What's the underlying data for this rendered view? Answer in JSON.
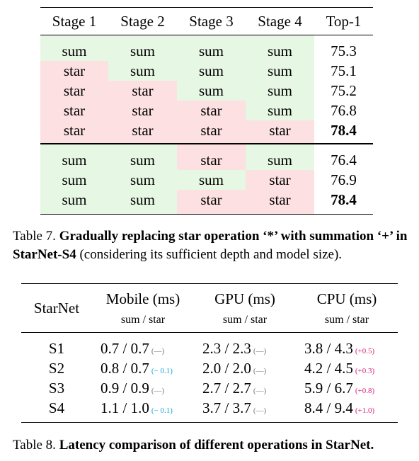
{
  "table7": {
    "headers": [
      "Stage 1",
      "Stage 2",
      "Stage 3",
      "Stage 4",
      "Top-1"
    ],
    "groups": [
      [
        {
          "stages": [
            "sum",
            "sum",
            "sum",
            "sum"
          ],
          "top1": "75.3",
          "bold": false
        },
        {
          "stages": [
            "star",
            "sum",
            "sum",
            "sum"
          ],
          "top1": "75.1",
          "bold": false
        },
        {
          "stages": [
            "star",
            "star",
            "sum",
            "sum"
          ],
          "top1": "75.2",
          "bold": false
        },
        {
          "stages": [
            "star",
            "star",
            "star",
            "sum"
          ],
          "top1": "76.8",
          "bold": false
        },
        {
          "stages": [
            "star",
            "star",
            "star",
            "star"
          ],
          "top1": "78.4",
          "bold": true
        }
      ],
      [
        {
          "stages": [
            "sum",
            "sum",
            "star",
            "sum"
          ],
          "top1": "76.4",
          "bold": false
        },
        {
          "stages": [
            "sum",
            "sum",
            "sum",
            "star"
          ],
          "top1": "76.9",
          "bold": false
        },
        {
          "stages": [
            "sum",
            "sum",
            "star",
            "star"
          ],
          "top1": "78.4",
          "bold": true
        }
      ]
    ],
    "colors": {
      "sum": "#e6f7e4",
      "star": "#fde0e2"
    }
  },
  "caption7": {
    "label": "Table 7.",
    "bold": "Gradually replacing star operation ‘*’ with summation ‘+’ in StarNet-S4",
    "rest": "(considering its sufficient depth and model size)."
  },
  "table8": {
    "corner": "StarNet",
    "columns": [
      "Mobile (ms)",
      "GPU (ms)",
      "CPU (ms)"
    ],
    "subheader": "sum / star",
    "rows": [
      {
        "name": "S1",
        "cells": [
          {
            "value": "0.7 / 0.7",
            "delta": "(—)",
            "kind": "zero"
          },
          {
            "value": "2.3 / 2.3",
            "delta": "(—)",
            "kind": "zero"
          },
          {
            "value": "3.8 / 4.3",
            "delta": "(+0.5)",
            "kind": "pos"
          }
        ]
      },
      {
        "name": "S2",
        "cells": [
          {
            "value": "0.8 / 0.7",
            "delta": "(− 0.1)",
            "kind": "neg"
          },
          {
            "value": "2.0 / 2.0",
            "delta": "(—)",
            "kind": "zero"
          },
          {
            "value": "4.2 / 4.5",
            "delta": "(+0.3)",
            "kind": "pos"
          }
        ]
      },
      {
        "name": "S3",
        "cells": [
          {
            "value": "0.9 / 0.9",
            "delta": "(—)",
            "kind": "zero"
          },
          {
            "value": "2.7 / 2.7",
            "delta": "(—)",
            "kind": "zero"
          },
          {
            "value": "5.9 / 6.7",
            "delta": "(+0.8)",
            "kind": "pos"
          }
        ]
      },
      {
        "name": "S4",
        "cells": [
          {
            "value": "1.1 / 1.0",
            "delta": "(− 0.1)",
            "kind": "neg"
          },
          {
            "value": "3.7 / 3.7",
            "delta": "(—)",
            "kind": "zero"
          },
          {
            "value": "8.4 / 9.4",
            "delta": "(+1.0)",
            "kind": "pos"
          }
        ]
      }
    ],
    "delta_colors": {
      "zero": "#777777",
      "neg": "#1aa6d6",
      "pos": "#d6247a"
    }
  },
  "caption8": {
    "label": "Table 8.",
    "bold": "Latency comparison of different operations in StarNet."
  }
}
